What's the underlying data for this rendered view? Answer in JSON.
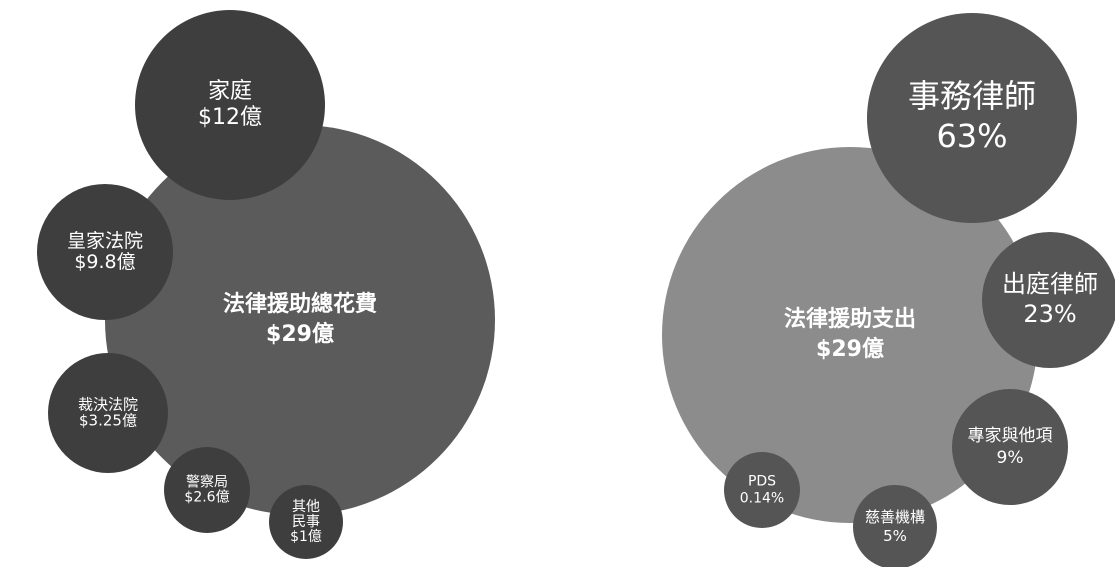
{
  "left": {
    "nodes": [
      {
        "lines": [
          "法律援助總花費",
          "$29億"
        ]
      },
      {
        "lines": [
          "家庭",
          "$12億"
        ]
      },
      {
        "lines": [
          "皇家法院",
          "$9.8億"
        ]
      },
      {
        "lines": [
          "裁決法院",
          "$3.25億"
        ]
      },
      {
        "lines": [
          "警察局",
          "$2.6億"
        ]
      },
      {
        "lines": [
          "其他",
          "民事",
          "$1億"
        ]
      }
    ]
  },
  "right": {
    "nodes": [
      {
        "lines": [
          "法律援助支出",
          "$29億"
        ]
      },
      {
        "lines": [
          "事務律師",
          "63%"
        ]
      },
      {
        "lines": [
          "出庭律師",
          "23%"
        ]
      },
      {
        "lines": [
          "專家與他項",
          "9%"
        ]
      },
      {
        "lines": [
          "慈善機構",
          "5%"
        ]
      },
      {
        "lines": [
          "PDS",
          "0.14%"
        ]
      }
    ]
  }
}
